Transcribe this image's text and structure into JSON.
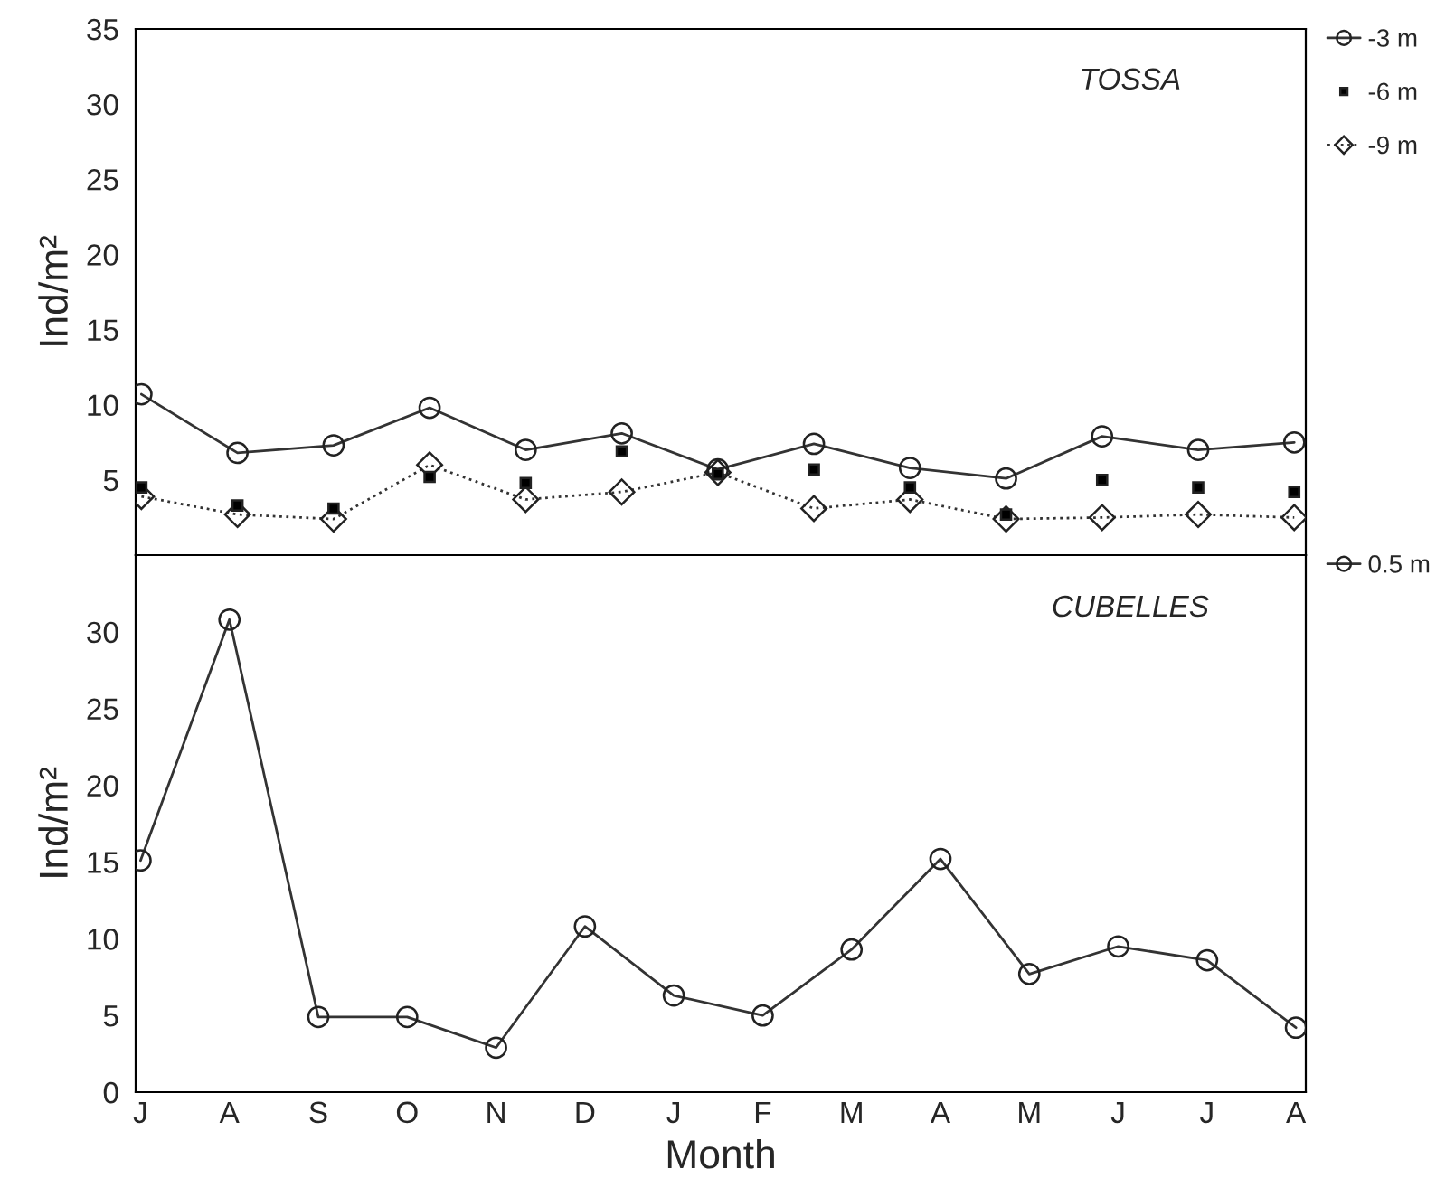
{
  "chart_data": [
    {
      "type": "line",
      "ylabel": "Ind/m²",
      "annotations": [
        "TOSSA"
      ],
      "categories": [
        null,
        null,
        null,
        null,
        null,
        null,
        null,
        null,
        null,
        null,
        null,
        null,
        null
      ],
      "ylim": [
        0,
        35
      ],
      "yticks": [
        5,
        10,
        15,
        20,
        25,
        30,
        35
      ],
      "tick_labels": "y",
      "legend": "top right",
      "grid": false,
      "series": [
        {
          "name": "-3 m",
          "color": "#333333",
          "marker": "circle",
          "line_style": "solid",
          "values": [
            10.7,
            6.8,
            7.3,
            9.8,
            7.0,
            8.1,
            5.7,
            7.4,
            5.8,
            5.1,
            7.9,
            7.0,
            7.5
          ]
        },
        {
          "name": "-6 m",
          "type": "scatter",
          "color": "#000000",
          "marker": "square",
          "values": [
            4.5,
            3.3,
            3.1,
            5.2,
            4.8,
            6.9,
            5.4,
            5.7,
            4.5,
            2.7,
            5.0,
            4.5,
            4.2
          ]
        },
        {
          "name": "-9 m",
          "color": "#333333",
          "marker": "diamond",
          "line_style": "dotted",
          "values": [
            3.9,
            2.7,
            2.4,
            6.0,
            3.7,
            4.2,
            5.5,
            3.1,
            3.7,
            2.4,
            2.5,
            2.7,
            2.5
          ]
        }
      ]
    },
    {
      "type": "line",
      "ylabel": "Ind/m²",
      "xlabel": "Month",
      "annotations": [
        "CUBELLES"
      ],
      "categories": [
        "J",
        "A",
        "S",
        "O",
        "N",
        "D",
        "J",
        "F",
        "M",
        "A",
        "M",
        "J",
        "J",
        "A"
      ],
      "ylim": [
        0,
        35
      ],
      "yticks": [
        0,
        5,
        10,
        15,
        20,
        25,
        30
      ],
      "legend": "top right",
      "grid": false,
      "series": [
        {
          "name": "0.5 m",
          "color": "#333333",
          "marker": "circle",
          "line_style": "solid",
          "values": [
            15.1,
            30.8,
            4.9,
            4.9,
            2.9,
            10.8,
            6.3,
            5.0,
            9.3,
            15.2,
            7.7,
            9.5,
            8.6,
            4.2
          ]
        }
      ]
    }
  ]
}
